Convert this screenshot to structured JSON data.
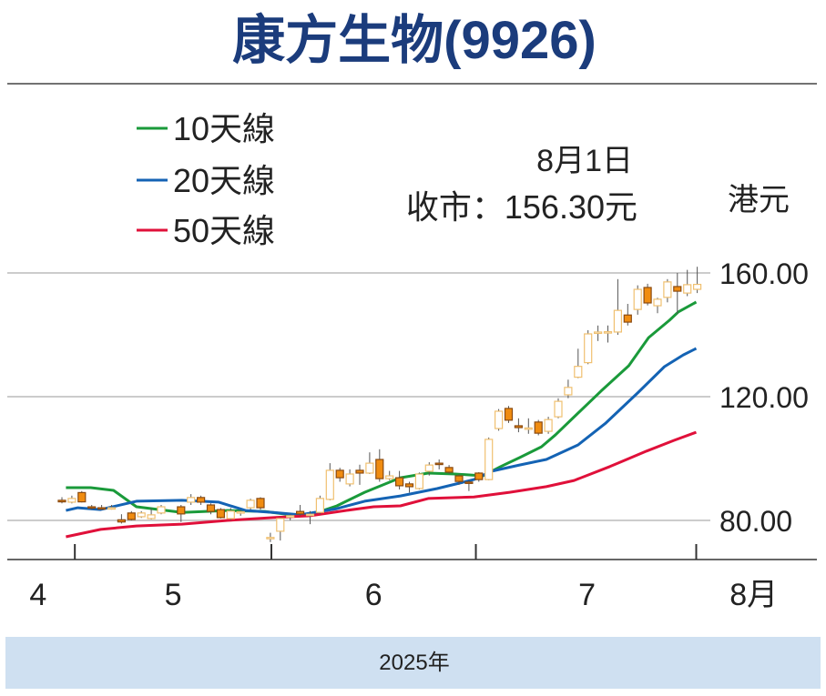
{
  "chart_data": {
    "type": "candlestick",
    "title": "康方生物(9926)",
    "unit_label": "港元",
    "annotation": {
      "date": "8月1日",
      "close": "收市：156.30元"
    },
    "year_label": "2025年",
    "x_unit": "trading day index",
    "ylim": [
      70,
      165
    ],
    "yticks": [
      {
        "value": 160,
        "label": "160.00"
      },
      {
        "value": 120,
        "label": "120.00"
      },
      {
        "value": 80,
        "label": "80.00"
      }
    ],
    "month_ticks": [
      1.3,
      21.1,
      41.7,
      63.9
    ],
    "month_labels": [
      {
        "label": "4",
        "x": -2.4
      },
      {
        "label": "5",
        "x": 11.2
      },
      {
        "label": "6",
        "x": 31.4
      },
      {
        "label": "7",
        "x": 52.9
      },
      {
        "label": "8月",
        "x": 69.7
      }
    ],
    "colors": {
      "title": "#1b3c7c",
      "up_fill": "#ffffff",
      "up_stroke": "#f0c070",
      "down_fill": "#f08c10",
      "down_stroke": "#8a4a10",
      "wick": "#555555",
      "grid": "#bbbbbb",
      "band": "#cfe0f1"
    },
    "legend": [
      {
        "name": "10天線",
        "color": "#1a9a3a"
      },
      {
        "name": "20天線",
        "color": "#1463b4"
      },
      {
        "name": "50天線",
        "color": "#e0103a"
      }
    ],
    "candles_fields": [
      "day",
      "open",
      "close",
      "high",
      "low"
    ],
    "candles": [
      [
        0,
        86.5,
        86.0,
        87.5,
        85.5
      ],
      [
        1,
        85.9,
        87.1,
        88,
        85.5
      ],
      [
        2,
        89.0,
        86.0,
        89.5,
        85.8
      ],
      [
        3,
        84.4,
        84.0,
        85,
        83.5
      ],
      [
        4,
        84.1,
        84.0,
        85,
        83.5
      ],
      [
        5,
        84.0,
        84.1,
        85,
        83.5
      ],
      [
        6,
        80.2,
        79.5,
        82,
        79
      ],
      [
        7,
        82.4,
        80.3,
        83,
        80
      ],
      [
        8,
        81.2,
        82.4,
        83,
        80.8
      ],
      [
        9,
        80.6,
        81.8,
        84,
        80.3
      ],
      [
        10,
        82.4,
        84.4,
        85,
        82
      ],
      [
        12,
        84.4,
        82.1,
        85,
        79.5
      ],
      [
        13,
        85.9,
        87.4,
        88.5,
        85
      ],
      [
        14,
        87.4,
        85.9,
        88,
        85
      ],
      [
        15,
        85.0,
        82.9,
        85.5,
        82
      ],
      [
        16,
        83.5,
        80.9,
        84,
        80.6
      ],
      [
        17,
        80.6,
        83.0,
        84,
        80
      ],
      [
        18,
        82.5,
        82.8,
        83.5,
        81.5
      ],
      [
        19,
        84.1,
        86.5,
        87,
        83.5
      ],
      [
        20,
        87.1,
        84.1,
        87.5,
        83.5
      ],
      [
        21,
        74.4,
        74.5,
        76,
        73
      ],
      [
        22,
        76.5,
        80.6,
        81,
        73.5
      ],
      [
        23,
        81.2,
        81.5,
        82,
        80
      ],
      [
        24,
        82.9,
        82.1,
        85,
        81.5
      ],
      [
        25,
        81.7,
        82.0,
        83,
        78.8
      ],
      [
        26,
        82.6,
        87.1,
        88,
        82
      ],
      [
        27,
        86.8,
        96.2,
        98.5,
        86.5
      ],
      [
        28,
        96.2,
        93.8,
        97,
        92.5
      ],
      [
        29,
        91.8,
        95.0,
        96.5,
        91
      ],
      [
        30,
        96.2,
        95.3,
        98,
        91.5
      ],
      [
        31,
        95.3,
        98.5,
        102,
        95
      ],
      [
        32,
        99.7,
        93.5,
        103,
        92.5
      ],
      [
        33,
        93.5,
        94.4,
        96,
        93
      ],
      [
        34,
        93.8,
        91.2,
        96,
        90
      ],
      [
        35,
        91.8,
        90.9,
        92.5,
        89
      ],
      [
        36,
        90.3,
        95.0,
        95.5,
        90
      ],
      [
        37,
        95.9,
        97.9,
        98.8,
        94.5
      ],
      [
        38,
        98.5,
        98.2,
        99.7,
        96.5
      ],
      [
        39,
        97.1,
        95.6,
        97.9,
        95
      ],
      [
        40,
        94.4,
        92.6,
        95,
        91.5
      ],
      [
        41,
        92.4,
        92.1,
        93,
        89.5
      ],
      [
        42,
        95.3,
        93.2,
        95.6,
        92.5
      ],
      [
        43,
        93.2,
        106.2,
        106.8,
        93
      ],
      [
        44,
        109.7,
        115.3,
        116,
        109
      ],
      [
        45,
        116.2,
        112.4,
        117,
        111.5
      ],
      [
        46,
        110.6,
        110.0,
        113,
        108.5
      ],
      [
        47,
        109.6,
        109.9,
        113,
        108
      ],
      [
        48,
        111.8,
        108.2,
        112.5,
        107.5
      ],
      [
        49,
        108.8,
        112.6,
        113.5,
        108
      ],
      [
        50,
        113.5,
        118.5,
        119.5,
        113
      ],
      [
        51,
        120.6,
        123.0,
        125.5,
        119.5
      ],
      [
        52,
        126.3,
        129.8,
        135.5,
        126
      ],
      [
        53,
        131.0,
        140.3,
        141.5,
        130.5
      ],
      [
        54,
        140.6,
        140.9,
        143,
        138
      ],
      [
        55,
        140.9,
        141.0,
        143,
        137.5
      ],
      [
        56,
        140.9,
        147.9,
        158,
        140
      ],
      [
        57,
        146.4,
        144.1,
        150,
        143
      ],
      [
        58,
        148.2,
        154.7,
        156,
        146.5
      ],
      [
        59,
        155.3,
        150.3,
        156.5,
        149.5
      ],
      [
        60,
        149.4,
        151.5,
        152,
        147
      ],
      [
        61,
        152.1,
        157.1,
        158,
        150.5
      ],
      [
        62,
        155.6,
        154.1,
        160,
        146.8
      ],
      [
        63,
        153.5,
        156.2,
        161,
        152.5
      ],
      [
        64,
        154.7,
        156.3,
        162,
        153.5
      ]
    ],
    "series": [
      {
        "name": "10天線",
        "points": [
          [
            0.4,
            90.6
          ],
          [
            2.9,
            90.6
          ],
          [
            5.2,
            89.7
          ],
          [
            7.5,
            84.4
          ],
          [
            12.1,
            82.6
          ],
          [
            16.7,
            83.2
          ],
          [
            20.4,
            82.9
          ],
          [
            23.1,
            81.8
          ],
          [
            25,
            81.8
          ],
          [
            27.7,
            84.7
          ],
          [
            30.5,
            89.1
          ],
          [
            34.1,
            93.8
          ],
          [
            36.9,
            95.3
          ],
          [
            39.6,
            95.0
          ],
          [
            42.4,
            94.4
          ],
          [
            44.2,
            97.4
          ],
          [
            46.1,
            100.3
          ],
          [
            48.3,
            103.8
          ],
          [
            49.7,
            107.6
          ],
          [
            52,
            114.7
          ],
          [
            54.3,
            121.8
          ],
          [
            57.1,
            130.0
          ],
          [
            59.1,
            139.1
          ],
          [
            61.2,
            144.7
          ],
          [
            62.1,
            147.4
          ],
          [
            63.9,
            150.6
          ]
        ]
      },
      {
        "name": "20天線",
        "points": [
          [
            0.4,
            83.2
          ],
          [
            1.6,
            84.1
          ],
          [
            3.9,
            83.5
          ],
          [
            7.5,
            86.2
          ],
          [
            12.1,
            86.5
          ],
          [
            15.8,
            85.9
          ],
          [
            18.5,
            83.2
          ],
          [
            21.3,
            82.6
          ],
          [
            24,
            81.8
          ],
          [
            27.7,
            83.8
          ],
          [
            30.5,
            86.2
          ],
          [
            34.1,
            87.9
          ],
          [
            37.8,
            90.3
          ],
          [
            41.5,
            93.2
          ],
          [
            43.3,
            95.9
          ],
          [
            46.1,
            97.9
          ],
          [
            48.8,
            99.7
          ],
          [
            52,
            104.4
          ],
          [
            54.8,
            111.5
          ],
          [
            58,
            121.2
          ],
          [
            60.7,
            129.7
          ],
          [
            62.6,
            133.5
          ],
          [
            63.9,
            135.6
          ]
        ]
      },
      {
        "name": "50天線",
        "points": [
          [
            0.4,
            74.7
          ],
          [
            3.9,
            77.1
          ],
          [
            7.5,
            78.2
          ],
          [
            12.1,
            78.8
          ],
          [
            16.7,
            80.0
          ],
          [
            21.3,
            80.9
          ],
          [
            25,
            81.5
          ],
          [
            28.6,
            83.2
          ],
          [
            31.4,
            84.4
          ],
          [
            34.1,
            84.7
          ],
          [
            36.9,
            87.1
          ],
          [
            41.5,
            87.6
          ],
          [
            45.1,
            89.1
          ],
          [
            48.8,
            90.9
          ],
          [
            51.6,
            92.9
          ],
          [
            55.2,
            97.4
          ],
          [
            58.9,
            102.4
          ],
          [
            61.7,
            105.9
          ],
          [
            63.9,
            108.5
          ]
        ]
      }
    ]
  }
}
